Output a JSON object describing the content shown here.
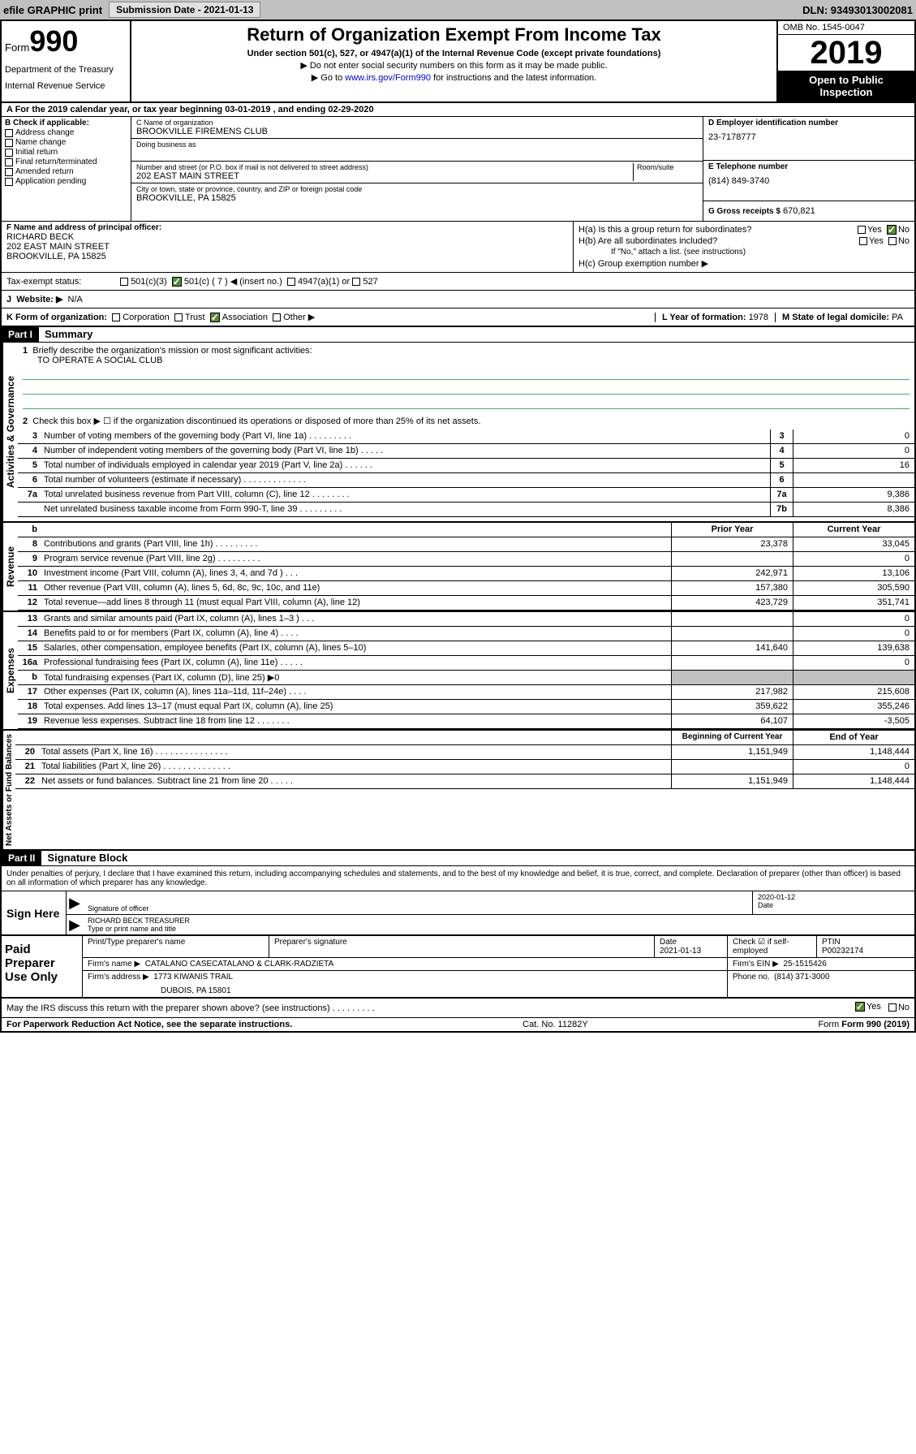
{
  "topbar": {
    "efile": "efile GRAPHIC print",
    "submission_label": "Submission Date - 2021-01-13",
    "dln": "DLN: 93493013002081"
  },
  "header": {
    "form_label": "Form",
    "form_num": "990",
    "dept1": "Department of the Treasury",
    "dept2": "Internal Revenue Service",
    "title": "Return of Organization Exempt From Income Tax",
    "subtitle": "Under section 501(c), 527, or 4947(a)(1) of the Internal Revenue Code (except private foundations)",
    "nossn": "▶ Do not enter social security numbers on this form as it may be made public.",
    "goto_pre": "▶ Go to ",
    "goto_link": "www.irs.gov/Form990",
    "goto_post": " for instructions and the latest information.",
    "omb": "OMB No. 1545-0047",
    "year": "2019",
    "open": "Open to Public Inspection"
  },
  "period": "A For the 2019 calendar year, or tax year beginning 03-01-2019   , and ending 02-29-2020",
  "boxB": {
    "label": "B Check if applicable:",
    "items": [
      "Address change",
      "Name change",
      "Initial return",
      "Final return/terminated",
      "Amended return",
      "Application pending"
    ]
  },
  "boxC": {
    "name_label": "C Name of organization",
    "name": "BROOKVILLE FIREMENS CLUB",
    "dba_label": "Doing business as",
    "street_label": "Number and street (or P.O. box if mail is not delivered to street address)",
    "room_label": "Room/suite",
    "street": "202 EAST MAIN STREET",
    "city_label": "City or town, state or province, country, and ZIP or foreign postal code",
    "city": "BROOKVILLE, PA  15825"
  },
  "boxD": {
    "label": "D Employer identification number",
    "value": "23-7178777"
  },
  "boxE": {
    "label": "E Telephone number",
    "value": "(814) 849-3740"
  },
  "boxG": {
    "label": "G Gross receipts $",
    "value": "670,821"
  },
  "boxF": {
    "label": "F  Name and address of principal officer:",
    "name": "RICHARD BECK",
    "street": "202 EAST MAIN STREET",
    "city": "BROOKVILLE, PA  15825"
  },
  "boxH": {
    "ha": "H(a)  Is this a group return for subordinates?",
    "hb": "H(b)  Are all subordinates included?",
    "hb_note": "If \"No,\" attach a list. (see instructions)",
    "hc": "H(c)  Group exemption number ▶",
    "yes": "Yes",
    "no": "No"
  },
  "taxexempt": {
    "label": "Tax-exempt status:",
    "c3": "501(c)(3)",
    "c": "501(c) ( 7 ) ◀ (insert no.)",
    "a1": "4947(a)(1) or",
    "s527": "527"
  },
  "boxI": {
    "label": "Website: ▶",
    "value": "N/A"
  },
  "boxJ": {
    "label": "J"
  },
  "boxK": {
    "label": "K Form of organization:",
    "corp": "Corporation",
    "trust": "Trust",
    "assoc": "Association",
    "other": "Other ▶"
  },
  "boxL": {
    "label": "L Year of formation:",
    "value": "1978"
  },
  "boxM": {
    "label": "M State of legal domicile:",
    "value": "PA"
  },
  "part1": {
    "header": "Part I",
    "title": "Summary",
    "q1": "Briefly describe the organization's mission or most significant activities:",
    "mission": "TO OPERATE A SOCIAL CLUB",
    "q2": "Check this box ▶ ☐  if the organization discontinued its operations or disposed of more than 25% of its net assets.",
    "lines_gov": [
      {
        "n": "3",
        "t": "Number of voting members of the governing body (Part VI, line 1a)   .    .    .    .    .    .    .    .    .",
        "box": "3",
        "v": "0"
      },
      {
        "n": "4",
        "t": "Number of independent voting members of the governing body (Part VI, line 1b)   .    .    .    .    .",
        "box": "4",
        "v": "0"
      },
      {
        "n": "5",
        "t": "Total number of individuals employed in calendar year 2019 (Part V, line 2a)   .    .    .    .    .    .",
        "box": "5",
        "v": "16"
      },
      {
        "n": "6",
        "t": "Total number of volunteers (estimate if necessary)   .    .    .    .    .    .    .    .    .    .    .    .    .",
        "box": "6",
        "v": ""
      },
      {
        "n": "7a",
        "t": "Total unrelated business revenue from Part VIII, column (C), line 12   .    .    .    .    .    .    .    .",
        "box": "7a",
        "v": "9,386"
      },
      {
        "n": "",
        "t": "Net unrelated business taxable income from Form 990-T, line 39   .    .    .    .    .    .    .    .    .",
        "box": "7b",
        "v": "8,386"
      }
    ],
    "col_prior": "Prior Year",
    "col_current": "Current Year",
    "lines_rev": [
      {
        "n": "8",
        "t": "Contributions and grants (Part VIII, line 1h)   .    .    .    .    .    .    .    .    .",
        "p": "23,378",
        "c": "33,045"
      },
      {
        "n": "9",
        "t": "Program service revenue (Part VIII, line 2g)   .    .    .    .    .    .    .    .    .",
        "p": "",
        "c": "0"
      },
      {
        "n": "10",
        "t": "Investment income (Part VIII, column (A), lines 3, 4, and 7d )   .    .    .",
        "p": "242,971",
        "c": "13,106"
      },
      {
        "n": "11",
        "t": "Other revenue (Part VIII, column (A), lines 5, 6d, 8c, 9c, 10c, and 11e)",
        "p": "157,380",
        "c": "305,590"
      },
      {
        "n": "12",
        "t": "Total revenue—add lines 8 through 11 (must equal Part VIII, column (A), line 12)",
        "p": "423,729",
        "c": "351,741"
      }
    ],
    "lines_exp": [
      {
        "n": "13",
        "t": "Grants and similar amounts paid (Part IX, column (A), lines 1–3 )   .    .    .",
        "p": "",
        "c": "0"
      },
      {
        "n": "14",
        "t": "Benefits paid to or for members (Part IX, column (A), line 4)   .    .    .    .",
        "p": "",
        "c": "0"
      },
      {
        "n": "15",
        "t": "Salaries, other compensation, employee benefits (Part IX, column (A), lines 5–10)",
        "p": "141,640",
        "c": "139,638"
      },
      {
        "n": "16a",
        "t": "Professional fundraising fees (Part IX, column (A), line 11e)   .    .    .    .    .",
        "p": "",
        "c": "0"
      },
      {
        "n": "b",
        "t": "Total fundraising expenses (Part IX, column (D), line 25) ▶0",
        "p": "GREY",
        "c": "GREY"
      },
      {
        "n": "17",
        "t": "Other expenses (Part IX, column (A), lines 11a–11d, 11f–24e)   .    .    .    .",
        "p": "217,982",
        "c": "215,608"
      },
      {
        "n": "18",
        "t": "Total expenses. Add lines 13–17 (must equal Part IX, column (A), line 25)",
        "p": "359,622",
        "c": "355,246"
      },
      {
        "n": "19",
        "t": "Revenue less expenses. Subtract line 18 from line 12   .    .    .    .    .    .    .",
        "p": "64,107",
        "c": "-3,505"
      }
    ],
    "col_begin": "Beginning of Current Year",
    "col_end": "End of Year",
    "lines_net": [
      {
        "n": "20",
        "t": "Total assets (Part X, line 16)   .    .    .    .    .    .    .    .    .    .    .    .    .    .    .",
        "p": "1,151,949",
        "c": "1,148,444"
      },
      {
        "n": "21",
        "t": "Total liabilities (Part X, line 26)   .    .    .    .    .    .    .    .    .    .    .    .    .    .",
        "p": "",
        "c": "0"
      },
      {
        "n": "22",
        "t": "Net assets or fund balances. Subtract line 21 from line 20   .    .    .    .    .",
        "p": "1,151,949",
        "c": "1,148,444"
      }
    ],
    "vlabels": {
      "gov": "Activities & Governance",
      "rev": "Revenue",
      "exp": "Expenses",
      "net": "Net Assets or Fund Balances"
    }
  },
  "part2": {
    "header": "Part II",
    "title": "Signature Block",
    "decl": "Under penalties of perjury, I declare that I have examined this return, including accompanying schedules and statements, and to the best of my knowledge and belief, it is true, correct, and complete. Declaration of preparer (other than officer) is based on all information of which preparer has any knowledge.",
    "sign_here": "Sign Here",
    "sig_officer": "Signature of officer",
    "sig_date": "2020-01-12",
    "date_label": "Date",
    "officer_name": "RICHARD BECK TREASURER",
    "type_name": "Type or print name and title",
    "paid": "Paid Preparer Use Only",
    "prep_name_label": "Print/Type preparer's name",
    "prep_sig_label": "Preparer's signature",
    "prep_date_label": "Date",
    "prep_date": "2021-01-13",
    "check_self": "Check ☑ if self-employed",
    "ptin_label": "PTIN",
    "ptin": "P00232174",
    "firm_name_label": "Firm's name    ▶",
    "firm_name": "CATALANO CASECATALANO & CLARK-RADZIETA",
    "firm_ein_label": "Firm's EIN ▶",
    "firm_ein": "25-1515426",
    "firm_addr_label": "Firm's address ▶",
    "firm_addr1": "1773 KIWANIS TRAIL",
    "firm_addr2": "DUBOIS, PA  15801",
    "phone_label": "Phone no.",
    "phone": "(814) 371-3000",
    "discuss": "May the IRS discuss this return with the preparer shown above? (see instructions)   .    .    .    .    .    .    .    .    .",
    "yes": "Yes",
    "no": "No"
  },
  "footer": {
    "paperwork": "For Paperwork Reduction Act Notice, see the separate instructions.",
    "cat": "Cat. No. 11282Y",
    "form": "Form 990 (2019)"
  }
}
